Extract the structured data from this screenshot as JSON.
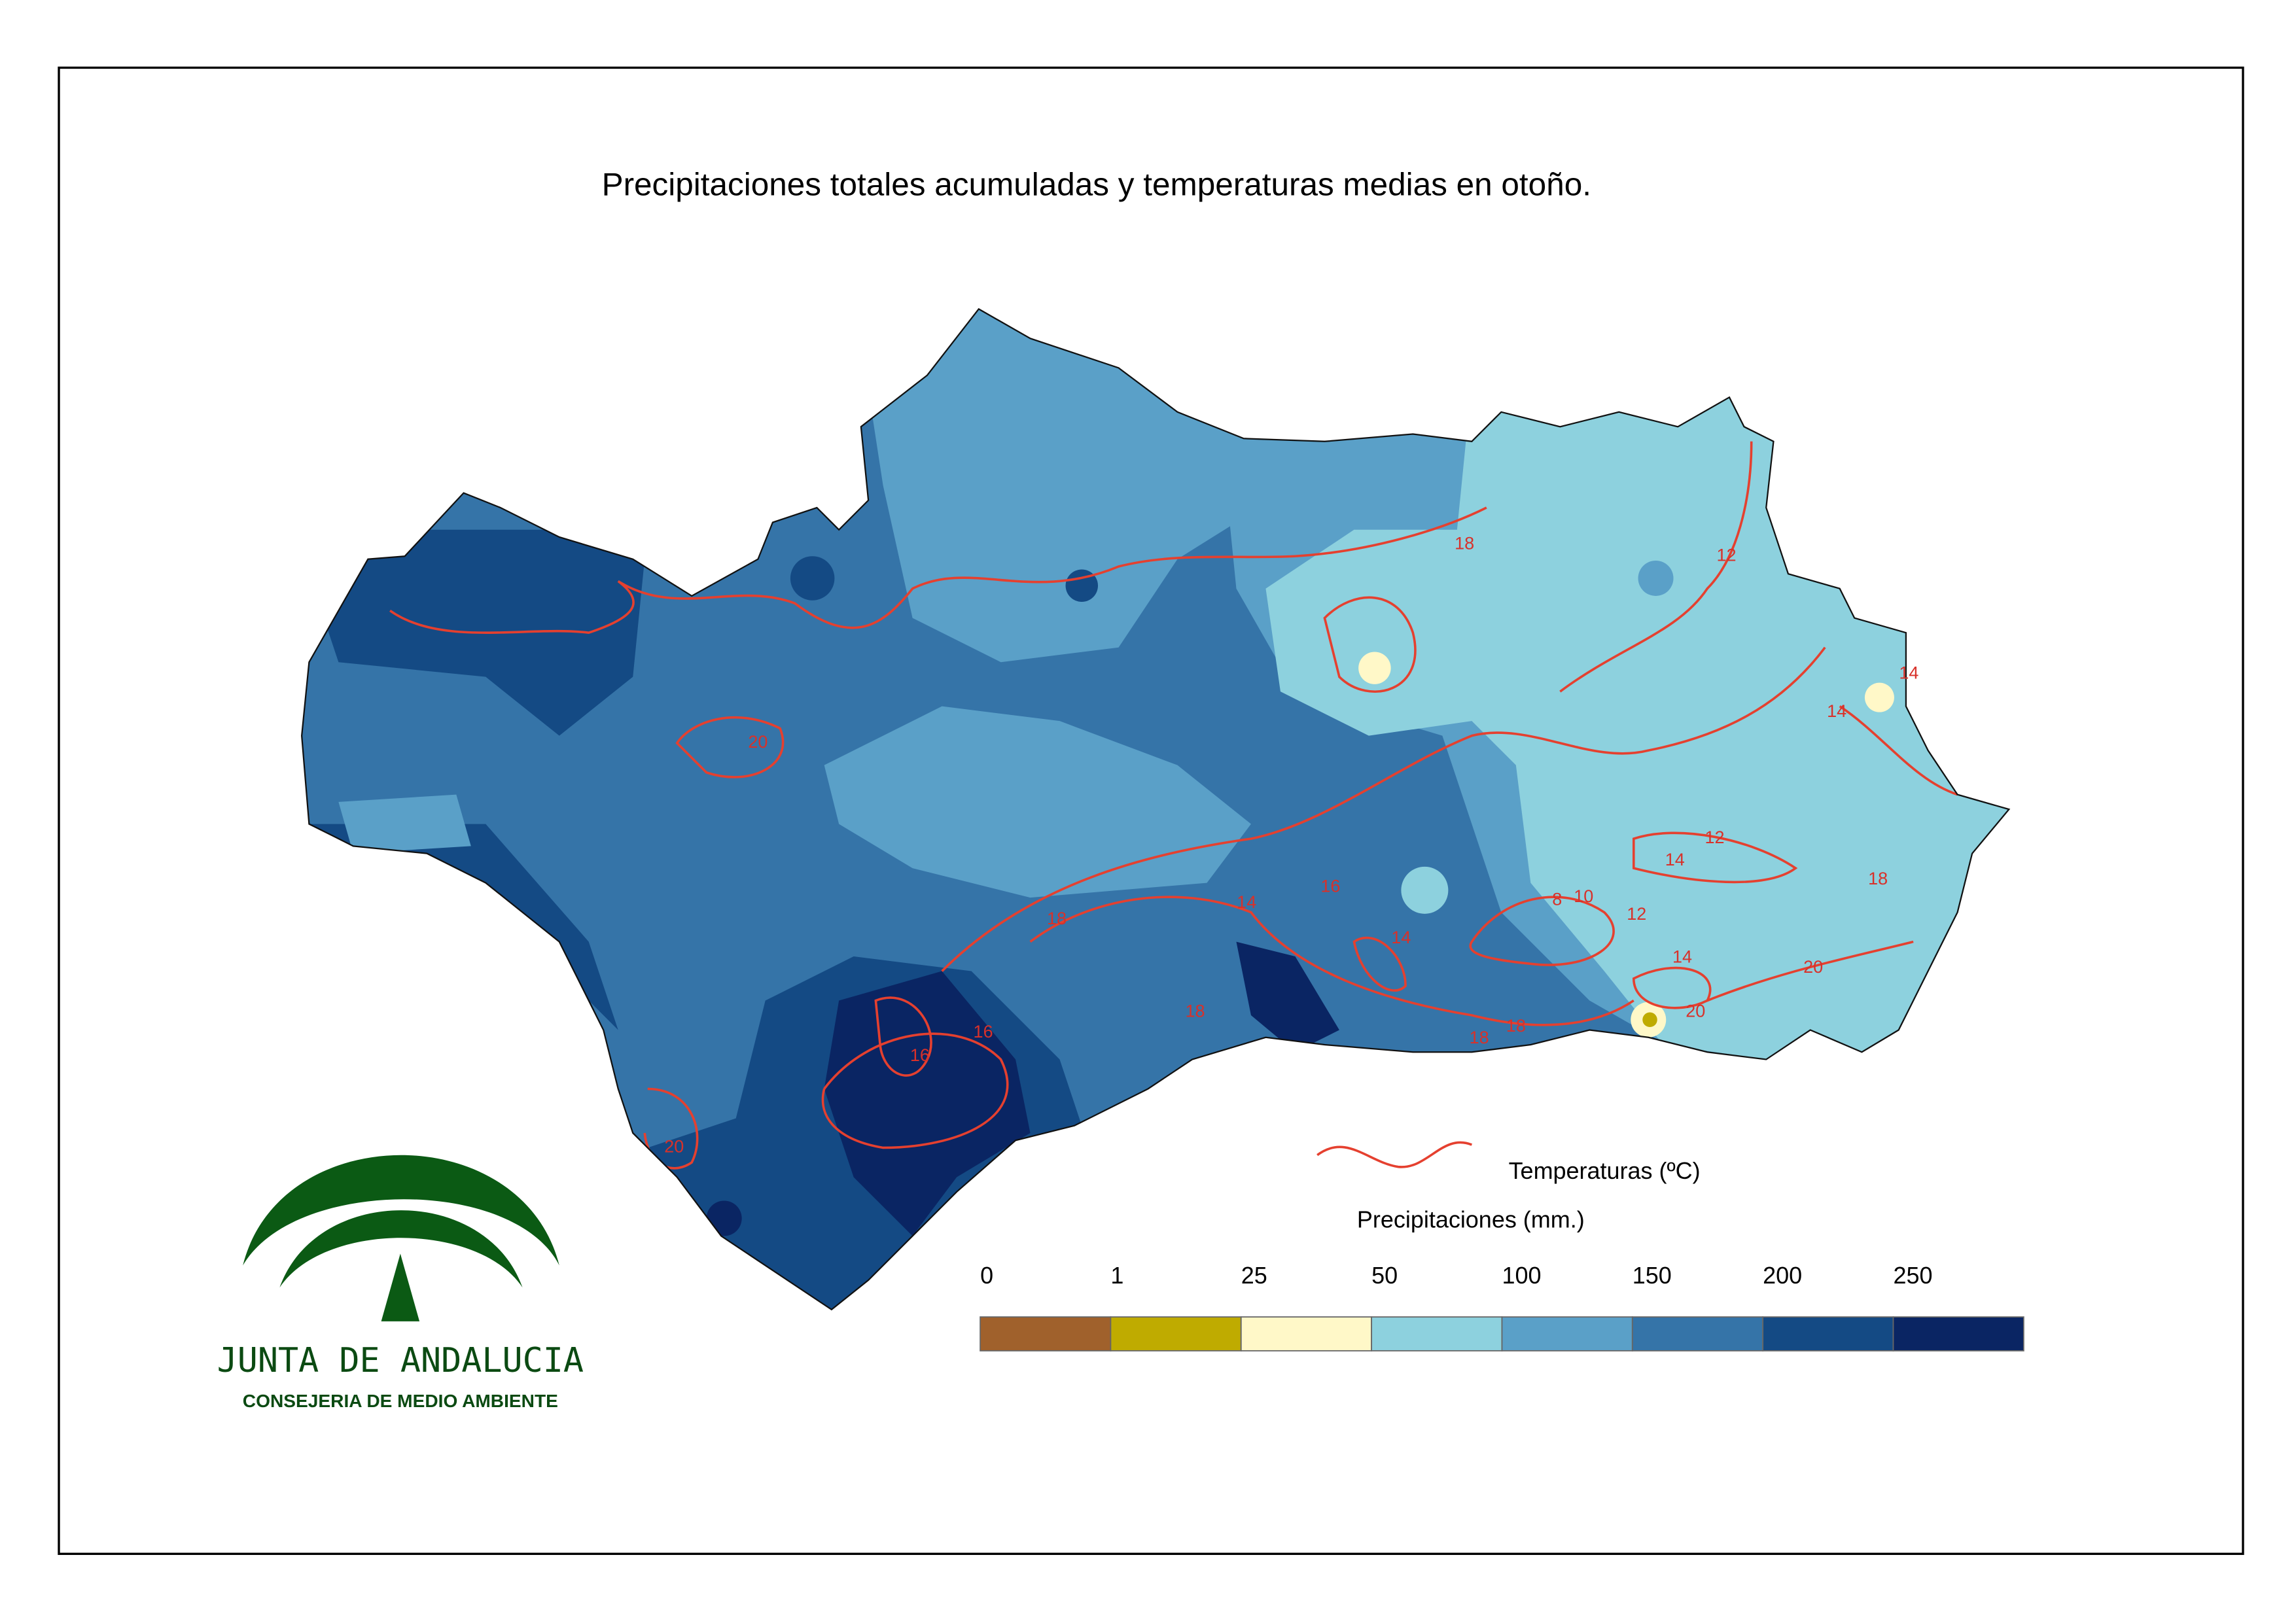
{
  "title": "Precipitaciones totales acumuladas y temperaturas medias en otoño.",
  "contour_labels": [
    18,
    20,
    12,
    14,
    14,
    12,
    14,
    10,
    8,
    12,
    16,
    14,
    18,
    14,
    14,
    18,
    20,
    20,
    18,
    18,
    18,
    16,
    16,
    20
  ],
  "legend": {
    "temperature_label": "Temperaturas (ºC)",
    "precipitation_title": "Precipitaciones (mm.)",
    "breaks": [
      0,
      1,
      25,
      50,
      100,
      150,
      200,
      250
    ],
    "colors": [
      "#a0612c",
      "#bfab00",
      "#fff8c8",
      "#8dd1de",
      "#5aa0c8",
      "#3574a8",
      "#144a84",
      "#0a2563"
    ]
  },
  "logo": {
    "name": "JUNTA DE ANDALUCIA",
    "department": "CONSEJERIA DE MEDIO AMBIENTE"
  }
}
